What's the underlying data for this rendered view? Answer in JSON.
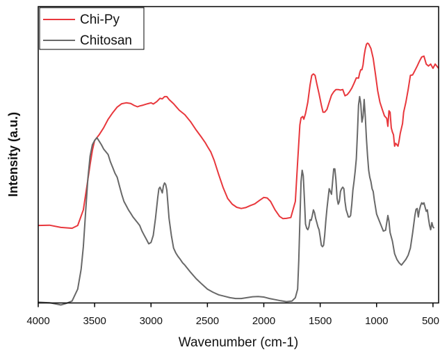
{
  "chart_data": {
    "type": "line",
    "title": "",
    "xlabel": "Wavenumber (cm-1)",
    "ylabel": "Intensity (a.u.)",
    "xlim": [
      4000,
      450
    ],
    "x_reversed": true,
    "y_ticks_shown": false,
    "grid": false,
    "legend_position": "top-left",
    "xticks": [
      4000,
      3500,
      3000,
      2500,
      2000,
      1500,
      1000,
      500
    ],
    "series": [
      {
        "name": "Chi-Py",
        "color": "#e8373c",
        "points": [
          [
            4000,
            27.5
          ],
          [
            3900,
            27.6
          ],
          [
            3800,
            26.8
          ],
          [
            3700,
            26.5
          ],
          [
            3650,
            27.5
          ],
          [
            3600,
            33
          ],
          [
            3570,
            41
          ],
          [
            3540,
            49
          ],
          [
            3520,
            54
          ],
          [
            3500,
            57.5
          ],
          [
            3460,
            59.5
          ],
          [
            3420,
            62
          ],
          [
            3380,
            65
          ],
          [
            3340,
            67.3
          ],
          [
            3300,
            69.3
          ],
          [
            3260,
            70.5
          ],
          [
            3220,
            70.8
          ],
          [
            3180,
            70.6
          ],
          [
            3150,
            69.9
          ],
          [
            3120,
            69.4
          ],
          [
            3100,
            69.7
          ],
          [
            3070,
            70
          ],
          [
            3030,
            70.5
          ],
          [
            3000,
            70.8
          ],
          [
            2980,
            70.4
          ],
          [
            2950,
            71.2
          ],
          [
            2920,
            72.4
          ],
          [
            2900,
            72.2
          ],
          [
            2880,
            73
          ],
          [
            2860,
            73
          ],
          [
            2840,
            72
          ],
          [
            2800,
            70.5
          ],
          [
            2750,
            68.2
          ],
          [
            2700,
            66.6
          ],
          [
            2650,
            64.2
          ],
          [
            2600,
            61.2
          ],
          [
            2550,
            58.5
          ],
          [
            2520,
            56.8
          ],
          [
            2500,
            55.4
          ],
          [
            2470,
            53.5
          ],
          [
            2440,
            50.5
          ],
          [
            2400,
            45.5
          ],
          [
            2360,
            40.8
          ],
          [
            2320,
            37
          ],
          [
            2280,
            35
          ],
          [
            2240,
            33.9
          ],
          [
            2200,
            33.5
          ],
          [
            2160,
            33.8
          ],
          [
            2120,
            34.5
          ],
          [
            2080,
            35.1
          ],
          [
            2040,
            36.3
          ],
          [
            2000,
            37.4
          ],
          [
            1970,
            37.2
          ],
          [
            1940,
            36
          ],
          [
            1900,
            33
          ],
          [
            1860,
            30.7
          ],
          [
            1830,
            29.9
          ],
          [
            1800,
            30
          ],
          [
            1760,
            30.3
          ],
          [
            1720,
            36
          ],
          [
            1700,
            50
          ],
          [
            1680,
            63
          ],
          [
            1670,
            65.5
          ],
          [
            1655,
            66
          ],
          [
            1645,
            65
          ],
          [
            1630,
            67
          ],
          [
            1610,
            71
          ],
          [
            1590,
            77
          ],
          [
            1575,
            80.5
          ],
          [
            1560,
            81
          ],
          [
            1545,
            80.5
          ],
          [
            1530,
            77.5
          ],
          [
            1510,
            74
          ],
          [
            1490,
            70
          ],
          [
            1475,
            67.5
          ],
          [
            1460,
            67.5
          ],
          [
            1440,
            68.5
          ],
          [
            1420,
            71
          ],
          [
            1400,
            73.5
          ],
          [
            1380,
            74.7
          ],
          [
            1360,
            75.5
          ],
          [
            1340,
            75.5
          ],
          [
            1320,
            75.3
          ],
          [
            1300,
            75.5
          ],
          [
            1280,
            73.3
          ],
          [
            1260,
            73.7
          ],
          [
            1240,
            74.7
          ],
          [
            1220,
            76
          ],
          [
            1200,
            77.7
          ],
          [
            1180,
            79.6
          ],
          [
            1160,
            79.5
          ],
          [
            1150,
            81.3
          ],
          [
            1140,
            82.5
          ],
          [
            1130,
            82.5
          ],
          [
            1120,
            84.2
          ],
          [
            1110,
            87.5
          ],
          [
            1100,
            89.8
          ],
          [
            1090,
            91.5
          ],
          [
            1080,
            91.9
          ],
          [
            1070,
            91.6
          ],
          [
            1050,
            90
          ],
          [
            1030,
            86.5
          ],
          [
            1010,
            81
          ],
          [
            990,
            75
          ],
          [
            970,
            71
          ],
          [
            950,
            68.5
          ],
          [
            930,
            66.2
          ],
          [
            910,
            65.3
          ],
          [
            900,
            62.5
          ],
          [
            890,
            68
          ],
          [
            880,
            67.5
          ],
          [
            870,
            62
          ],
          [
            860,
            60.5
          ],
          [
            850,
            59.5
          ],
          [
            840,
            55.5
          ],
          [
            830,
            56.5
          ],
          [
            820,
            56
          ],
          [
            810,
            55.5
          ],
          [
            800,
            57.5
          ],
          [
            790,
            60
          ],
          [
            770,
            63.5
          ],
          [
            760,
            67.5
          ],
          [
            740,
            71
          ],
          [
            720,
            75.5
          ],
          [
            700,
            80.5
          ],
          [
            680,
            80.7
          ],
          [
            660,
            82.2
          ],
          [
            640,
            83.8
          ],
          [
            620,
            85.5
          ],
          [
            600,
            87
          ],
          [
            580,
            87.3
          ],
          [
            560,
            84.5
          ],
          [
            540,
            83.8
          ],
          [
            520,
            84.5
          ],
          [
            500,
            83
          ],
          [
            480,
            84.5
          ],
          [
            460,
            83.5
          ],
          [
            450,
            83
          ]
        ]
      },
      {
        "name": "Chitosan",
        "color": "#686868",
        "points": [
          [
            4000,
            0.4
          ],
          [
            3900,
            0.2
          ],
          [
            3800,
            -0.6
          ],
          [
            3750,
            0
          ],
          [
            3700,
            0.8
          ],
          [
            3650,
            5
          ],
          [
            3620,
            12
          ],
          [
            3600,
            20
          ],
          [
            3580,
            32
          ],
          [
            3560,
            44
          ],
          [
            3540,
            52
          ],
          [
            3520,
            56
          ],
          [
            3500,
            57.5
          ],
          [
            3480,
            58.5
          ],
          [
            3460,
            57.3
          ],
          [
            3440,
            56
          ],
          [
            3420,
            54.5
          ],
          [
            3400,
            53.5
          ],
          [
            3380,
            52.5
          ],
          [
            3360,
            50
          ],
          [
            3340,
            48
          ],
          [
            3320,
            46
          ],
          [
            3300,
            44.5
          ],
          [
            3280,
            41.5
          ],
          [
            3260,
            38.5
          ],
          [
            3240,
            36
          ],
          [
            3220,
            34.5
          ],
          [
            3200,
            33
          ],
          [
            3180,
            31.8
          ],
          [
            3160,
            30.5
          ],
          [
            3140,
            29.5
          ],
          [
            3120,
            28.5
          ],
          [
            3100,
            27.5
          ],
          [
            3080,
            25.5
          ],
          [
            3060,
            24
          ],
          [
            3040,
            22.5
          ],
          [
            3020,
            21
          ],
          [
            3000,
            21.5
          ],
          [
            2980,
            24
          ],
          [
            2960,
            30
          ],
          [
            2940,
            37.5
          ],
          [
            2930,
            40.5
          ],
          [
            2920,
            41
          ],
          [
            2910,
            40
          ],
          [
            2900,
            39
          ],
          [
            2890,
            41.5
          ],
          [
            2880,
            42.5
          ],
          [
            2870,
            42
          ],
          [
            2860,
            40
          ],
          [
            2850,
            35
          ],
          [
            2840,
            30
          ],
          [
            2820,
            24
          ],
          [
            2800,
            19.5
          ],
          [
            2780,
            17.8
          ],
          [
            2760,
            16.5
          ],
          [
            2740,
            15.5
          ],
          [
            2720,
            14.3
          ],
          [
            2700,
            13.5
          ],
          [
            2650,
            11
          ],
          [
            2600,
            8.7
          ],
          [
            2550,
            6.8
          ],
          [
            2500,
            5
          ],
          [
            2450,
            3.9
          ],
          [
            2400,
            3
          ],
          [
            2350,
            2.5
          ],
          [
            2300,
            2
          ],
          [
            2250,
            1.7
          ],
          [
            2200,
            1.7
          ],
          [
            2150,
            2
          ],
          [
            2100,
            2.3
          ],
          [
            2050,
            2.4
          ],
          [
            2000,
            2.2
          ],
          [
            1950,
            1.7
          ],
          [
            1900,
            1.3
          ],
          [
            1850,
            0.9
          ],
          [
            1800,
            0.6
          ],
          [
            1750,
            0.8
          ],
          [
            1720,
            2
          ],
          [
            1700,
            5
          ],
          [
            1690,
            15
          ],
          [
            1680,
            29
          ],
          [
            1670,
            43
          ],
          [
            1660,
            47
          ],
          [
            1650,
            45
          ],
          [
            1640,
            37
          ],
          [
            1630,
            28
          ],
          [
            1620,
            26.5
          ],
          [
            1610,
            26
          ],
          [
            1600,
            27
          ],
          [
            1590,
            29.5
          ],
          [
            1580,
            29.3
          ],
          [
            1570,
            31
          ],
          [
            1560,
            33
          ],
          [
            1550,
            32
          ],
          [
            1540,
            30
          ],
          [
            1530,
            28.5
          ],
          [
            1520,
            27
          ],
          [
            1510,
            26
          ],
          [
            1500,
            23.5
          ],
          [
            1490,
            20.5
          ],
          [
            1480,
            20
          ],
          [
            1470,
            20.5
          ],
          [
            1460,
            24
          ],
          [
            1450,
            29
          ],
          [
            1440,
            33.5
          ],
          [
            1430,
            37
          ],
          [
            1420,
            40.5
          ],
          [
            1410,
            39.5
          ],
          [
            1400,
            38.5
          ],
          [
            1390,
            43
          ],
          [
            1380,
            47.5
          ],
          [
            1370,
            47.5
          ],
          [
            1360,
            43.5
          ],
          [
            1350,
            37
          ],
          [
            1340,
            35
          ],
          [
            1330,
            36
          ],
          [
            1320,
            39.5
          ],
          [
            1310,
            40.5
          ],
          [
            1300,
            41
          ],
          [
            1290,
            40.5
          ],
          [
            1280,
            36
          ],
          [
            1270,
            33
          ],
          [
            1260,
            31.8
          ],
          [
            1250,
            30.5
          ],
          [
            1240,
            30.5
          ],
          [
            1230,
            31
          ],
          [
            1220,
            35
          ],
          [
            1210,
            40
          ],
          [
            1200,
            43
          ],
          [
            1190,
            46.5
          ],
          [
            1180,
            51
          ],
          [
            1170,
            60
          ],
          [
            1160,
            70
          ],
          [
            1150,
            73
          ],
          [
            1140,
            70.5
          ],
          [
            1130,
            64
          ],
          [
            1120,
            66
          ],
          [
            1110,
            72
          ],
          [
            1100,
            66
          ],
          [
            1090,
            58
          ],
          [
            1080,
            52
          ],
          [
            1070,
            47
          ],
          [
            1060,
            44.5
          ],
          [
            1050,
            43
          ],
          [
            1040,
            40.5
          ],
          [
            1030,
            39.5
          ],
          [
            1020,
            36.5
          ],
          [
            1000,
            31.5
          ],
          [
            980,
            29.5
          ],
          [
            960,
            27.5
          ],
          [
            940,
            25.5
          ],
          [
            920,
            25.8
          ],
          [
            900,
            31
          ],
          [
            890,
            29
          ],
          [
            880,
            25
          ],
          [
            860,
            22
          ],
          [
            840,
            17.5
          ],
          [
            820,
            15.5
          ],
          [
            800,
            14.3
          ],
          [
            780,
            13.5
          ],
          [
            760,
            14.5
          ],
          [
            740,
            15.5
          ],
          [
            720,
            17
          ],
          [
            700,
            19.5
          ],
          [
            680,
            25
          ],
          [
            660,
            31
          ],
          [
            650,
            33.2
          ],
          [
            640,
            33.5
          ],
          [
            630,
            30.5
          ],
          [
            620,
            33
          ],
          [
            610,
            34.5
          ],
          [
            600,
            35.5
          ],
          [
            590,
            35
          ],
          [
            580,
            35.5
          ],
          [
            570,
            34
          ],
          [
            560,
            32.5
          ],
          [
            550,
            33
          ],
          [
            540,
            30
          ],
          [
            530,
            27.5
          ],
          [
            520,
            26
          ],
          [
            510,
            28.5
          ],
          [
            500,
            27
          ],
          [
            490,
            26.5
          ]
        ]
      }
    ]
  }
}
